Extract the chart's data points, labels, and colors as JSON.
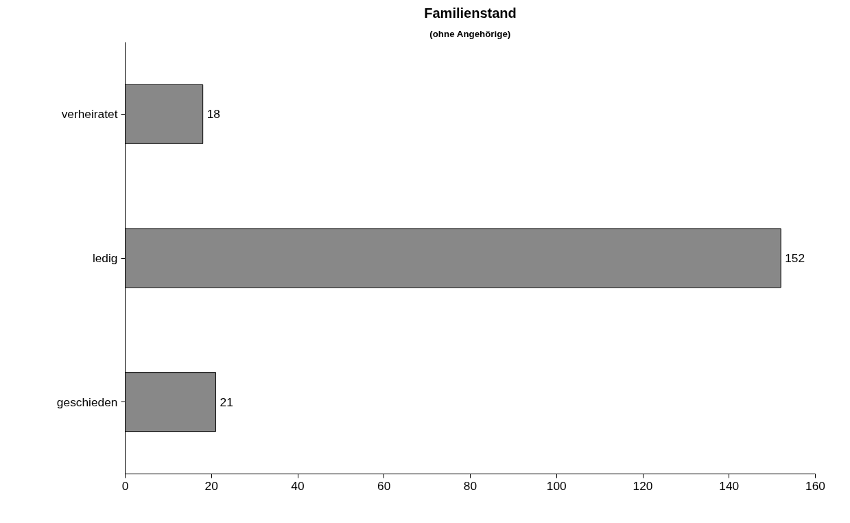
{
  "chart_data": {
    "type": "bar",
    "orientation": "horizontal",
    "title": "Familienstand",
    "subtitle": "(ohne Angehörige)",
    "categories": [
      "verheiratet",
      "ledig",
      "geschieden"
    ],
    "values": [
      18,
      152,
      21
    ],
    "color": "#888888",
    "xlim": [
      0,
      160
    ],
    "xticks": [
      0,
      20,
      40,
      60,
      80,
      100,
      120,
      140,
      160
    ],
    "data_labels": true
  }
}
